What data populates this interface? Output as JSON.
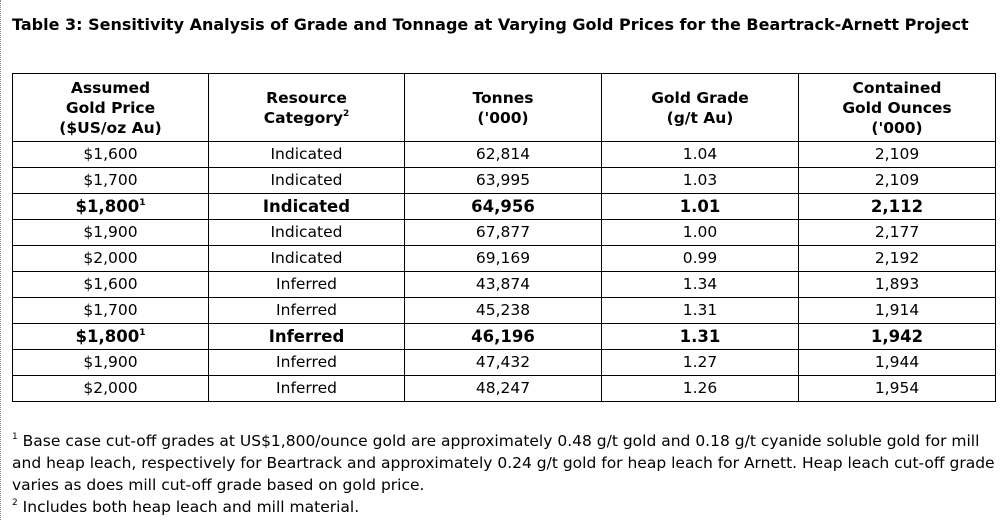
{
  "title": "Table 3: Sensitivity Analysis of Grade and Tonnage at Varying Gold Prices for the Beartrack-Arnett Project",
  "headers": {
    "price_line1": "Assumed",
    "price_line2": "Gold Price",
    "price_line3": "($US/oz Au)",
    "category_line1": "Resource",
    "category_line2": "Category",
    "category_sup": "2",
    "tonnes_line1": "Tonnes",
    "tonnes_line2": "('000)",
    "grade_line1": "Gold Grade",
    "grade_line2": "(g/t Au)",
    "ounces_line1": "Contained",
    "ounces_line2": "Gold Ounces",
    "ounces_line3": "('000)"
  },
  "rows": [
    {
      "price": "$1,600",
      "sup": "",
      "category": "Indicated",
      "tonnes": "62,814",
      "grade": "1.04",
      "ounces": "2,109"
    },
    {
      "price": "$1,700",
      "sup": "",
      "category": "Indicated",
      "tonnes": "63,995",
      "grade": "1.03",
      "ounces": "2,109"
    },
    {
      "price": "$1,800",
      "sup": "1",
      "category": "Indicated",
      "tonnes": "64,956",
      "grade": "1.01",
      "ounces": "2,112"
    },
    {
      "price": "$1,900",
      "sup": "",
      "category": "Indicated",
      "tonnes": "67,877",
      "grade": "1.00",
      "ounces": "2,177"
    },
    {
      "price": "$2,000",
      "sup": "",
      "category": "Indicated",
      "tonnes": "69,169",
      "grade": "0.99",
      "ounces": "2,192"
    },
    {
      "price": "$1,600",
      "sup": "",
      "category": "Inferred",
      "tonnes": "43,874",
      "grade": "1.34",
      "ounces": "1,893"
    },
    {
      "price": "$1,700",
      "sup": "",
      "category": "Inferred",
      "tonnes": "45,238",
      "grade": "1.31",
      "ounces": "1,914"
    },
    {
      "price": "$1,800",
      "sup": "1",
      "category": "Inferred",
      "tonnes": "46,196",
      "grade": "1.31",
      "ounces": "1,942"
    },
    {
      "price": "$1,900",
      "sup": "",
      "category": "Inferred",
      "tonnes": "47,432",
      "grade": "1.27",
      "ounces": "1,944"
    },
    {
      "price": "$2,000",
      "sup": "",
      "category": "Inferred",
      "tonnes": "48,247",
      "grade": "1.26",
      "ounces": "1,954"
    }
  ],
  "footnotes": {
    "note1_marker": "1",
    "note1_text": "Base case cut-off grades at US$1,800/ounce gold are approximately 0.48 g/t gold and 0.18 g/t cyanide soluble gold for mill and heap leach, respectively for Beartrack and approximately 0.24 g/t gold for heap leach for Arnett. Heap leach cut-off grade varies as does mill cut-off grade based on gold price.",
    "note2_marker": "2",
    "note2_text": "Includes both heap leach and mill material."
  }
}
